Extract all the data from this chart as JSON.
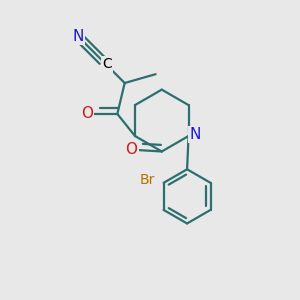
{
  "bg_color": "#e8e8e8",
  "bond_color": "#2d6e6e",
  "bond_width": 1.6,
  "N_color": "#1a1acc",
  "O_color": "#cc1a1a",
  "Br_color": "#b87000",
  "C_color": "#000000",
  "font_size": 10,
  "fig_size": [
    3.0,
    3.0
  ],
  "dpi": 100,
  "xlim": [
    0,
    10
  ],
  "ylim": [
    0,
    10
  ]
}
